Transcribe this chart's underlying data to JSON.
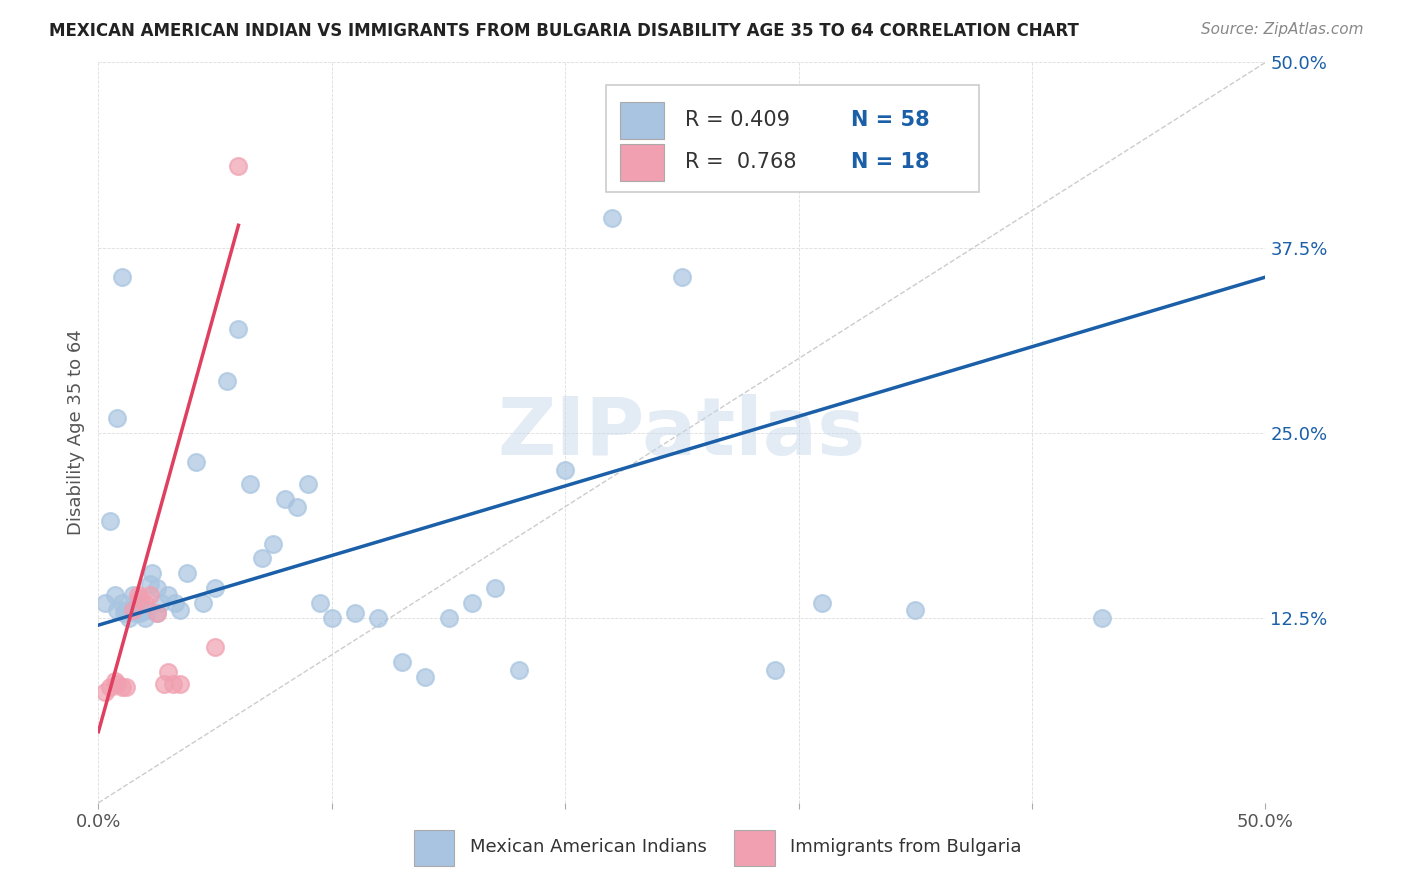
{
  "title": "MEXICAN AMERICAN INDIAN VS IMMIGRANTS FROM BULGARIA DISABILITY AGE 35 TO 64 CORRELATION CHART",
  "source": "Source: ZipAtlas.com",
  "ylabel": "Disability Age 35 to 64",
  "xlim": [
    0.0,
    0.5
  ],
  "ylim": [
    0.0,
    0.5
  ],
  "xticks": [
    0.0,
    0.1,
    0.2,
    0.3,
    0.4,
    0.5
  ],
  "yticks": [
    0.0,
    0.125,
    0.25,
    0.375,
    0.5
  ],
  "xticklabels": [
    "0.0%",
    "",
    "",
    "",
    "",
    "50.0%"
  ],
  "yticklabels": [
    "",
    "12.5%",
    "25.0%",
    "37.5%",
    "50.0%"
  ],
  "blue_R": 0.409,
  "blue_N": 58,
  "pink_R": 0.768,
  "pink_N": 18,
  "blue_color": "#a8c4e0",
  "pink_color": "#f0a0b0",
  "blue_line_color": "#1a5fa8",
  "pink_line_color": "#e04060",
  "diagonal_color": "#cccccc",
  "watermark": "ZIPatlas",
  "legend_label_blue": "Mexican American Indians",
  "legend_label_pink": "Immigrants from Bulgaria",
  "blue_scatter_x": [
    0.003,
    0.005,
    0.007,
    0.008,
    0.01,
    0.011,
    0.012,
    0.013,
    0.014,
    0.015,
    0.016,
    0.017,
    0.018,
    0.019,
    0.02,
    0.021,
    0.022,
    0.023,
    0.025,
    0.027,
    0.03,
    0.033,
    0.038,
    0.042,
    0.05,
    0.055,
    0.06,
    0.065,
    0.07,
    0.075,
    0.08,
    0.085,
    0.09,
    0.095,
    0.1,
    0.11,
    0.12,
    0.13,
    0.14,
    0.15,
    0.16,
    0.17,
    0.18,
    0.2,
    0.22,
    0.25,
    0.28,
    0.31,
    0.35,
    0.43,
    0.008,
    0.01,
    0.015,
    0.018,
    0.025,
    0.035,
    0.045,
    0.29
  ],
  "blue_scatter_y": [
    0.135,
    0.19,
    0.14,
    0.13,
    0.135,
    0.128,
    0.13,
    0.125,
    0.13,
    0.14,
    0.128,
    0.135,
    0.128,
    0.13,
    0.125,
    0.13,
    0.148,
    0.155,
    0.145,
    0.135,
    0.14,
    0.135,
    0.155,
    0.23,
    0.145,
    0.285,
    0.32,
    0.215,
    0.165,
    0.175,
    0.205,
    0.2,
    0.215,
    0.135,
    0.125,
    0.128,
    0.125,
    0.095,
    0.085,
    0.125,
    0.135,
    0.145,
    0.09,
    0.225,
    0.395,
    0.355,
    0.425,
    0.135,
    0.13,
    0.125,
    0.26,
    0.355,
    0.13,
    0.13,
    0.128,
    0.13,
    0.135,
    0.09
  ],
  "pink_scatter_x": [
    0.003,
    0.005,
    0.007,
    0.008,
    0.01,
    0.012,
    0.015,
    0.017,
    0.018,
    0.02,
    0.022,
    0.025,
    0.028,
    0.03,
    0.032,
    0.035,
    0.05,
    0.06
  ],
  "pink_scatter_y": [
    0.075,
    0.078,
    0.082,
    0.08,
    0.078,
    0.078,
    0.13,
    0.14,
    0.138,
    0.135,
    0.14,
    0.128,
    0.08,
    0.088,
    0.08,
    0.08,
    0.105,
    0.43
  ],
  "blue_line_x0": 0.0,
  "blue_line_x1": 0.5,
  "blue_line_y0": 0.12,
  "blue_line_y1": 0.355,
  "pink_line_x0": 0.0,
  "pink_line_x1": 0.06,
  "pink_line_y0": 0.048,
  "pink_line_y1": 0.39
}
